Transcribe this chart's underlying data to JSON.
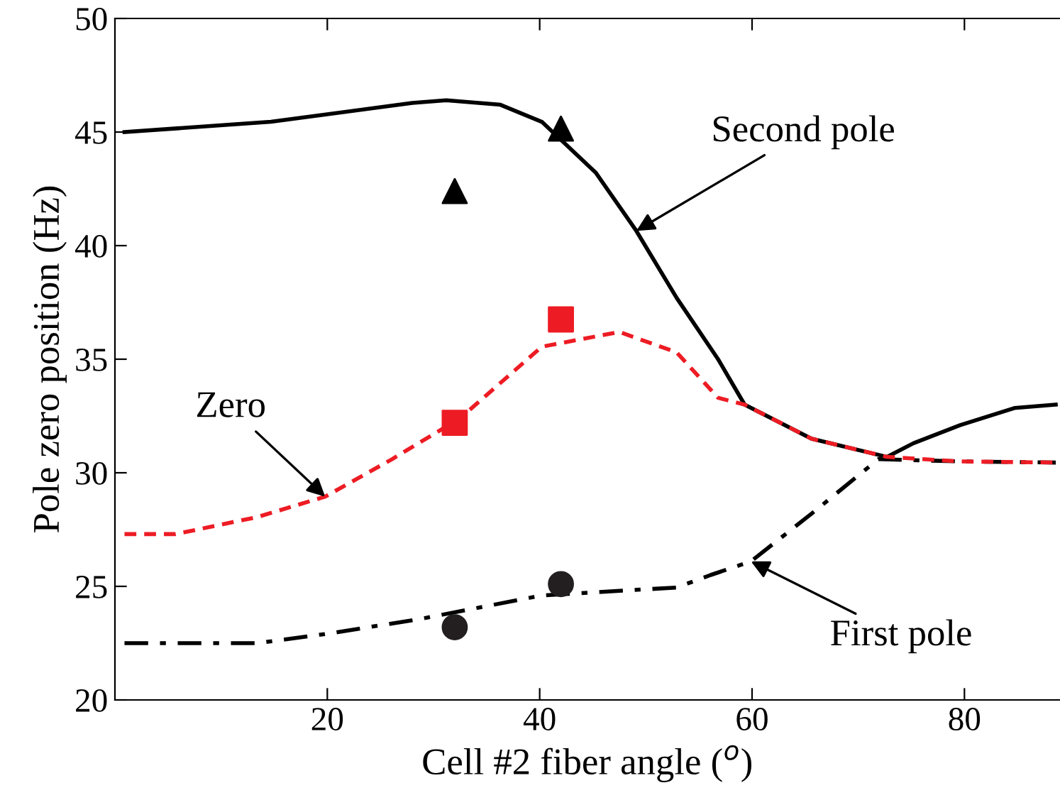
{
  "chart_data": {
    "type": "line",
    "xlabel": "Cell #2 fiber angle ($^{o}$)",
    "ylabel": "Pole zero position (Hz)",
    "xlim": [
      0,
      89
    ],
    "ylim": [
      20,
      50
    ],
    "xticks": [
      20,
      40,
      60,
      80
    ],
    "yticks": [
      20,
      25,
      30,
      35,
      40,
      45,
      50
    ],
    "grid": false,
    "legend": false,
    "series": [
      {
        "color": "#000000",
        "line_style": "solid",
        "marker": "none",
        "x": [
          0.9,
          14.7,
          28,
          31.2,
          36.3,
          40.2,
          45.3,
          49.1,
          52.9,
          56.8,
          59.3,
          65.6,
          72.7,
          75.2,
          79.6,
          84.7,
          88.6
        ],
        "values": [
          45.0,
          45.45,
          46.28,
          46.4,
          46.2,
          45.45,
          43.2,
          40.65,
          37.7,
          35.0,
          33.0,
          31.5,
          30.7,
          31.3,
          32.1,
          32.85,
          33.0
        ]
      },
      {
        "color": "#ed1c24",
        "line_style": "dashed",
        "marker": "none",
        "x": [
          0.9,
          5.7,
          13.4,
          19.8,
          26.1,
          32.5,
          40.2,
          47.5,
          52.9,
          56.8,
          59.3,
          65.6,
          72.7,
          79.6,
          88.6
        ],
        "values": [
          27.3,
          27.3,
          28.05,
          28.95,
          30.6,
          32.4,
          35.55,
          36.2,
          35.3,
          33.3,
          33.0,
          31.5,
          30.7,
          30.5,
          30.45
        ]
      },
      {
        "color": "#000000",
        "line_style": "dashdot",
        "marker": "none",
        "x": [
          0.9,
          13.4,
          19.8,
          28.6,
          40.2,
          52.9,
          56.1,
          59.9,
          65.6,
          71.9,
          79.6,
          88.6
        ],
        "values": [
          22.5,
          22.5,
          22.9,
          23.55,
          24.6,
          24.95,
          25.5,
          26.1,
          28.2,
          30.6,
          30.5,
          30.45
        ]
      },
      {
        "type": "scatter",
        "color": "#000000",
        "marker": "triangle",
        "x": [
          32,
          42
        ],
        "values": [
          42.4,
          45.15
        ]
      },
      {
        "type": "scatter",
        "color": "#ed1c24",
        "marker": "square",
        "x": [
          32,
          42
        ],
        "values": [
          32.2,
          36.75
        ]
      },
      {
        "type": "scatter",
        "color": "#231f20",
        "marker": "circle",
        "x": [
          32,
          42
        ],
        "values": [
          23.2,
          25.1
        ]
      }
    ],
    "annotations": [
      {
        "text": "Second pole",
        "x": 49.1,
        "y": 40.65
      },
      {
        "text": "Zero",
        "x": 19.8,
        "y": 28.95
      },
      {
        "text": "First pole",
        "x": 59.9,
        "y": 26.1
      }
    ]
  }
}
